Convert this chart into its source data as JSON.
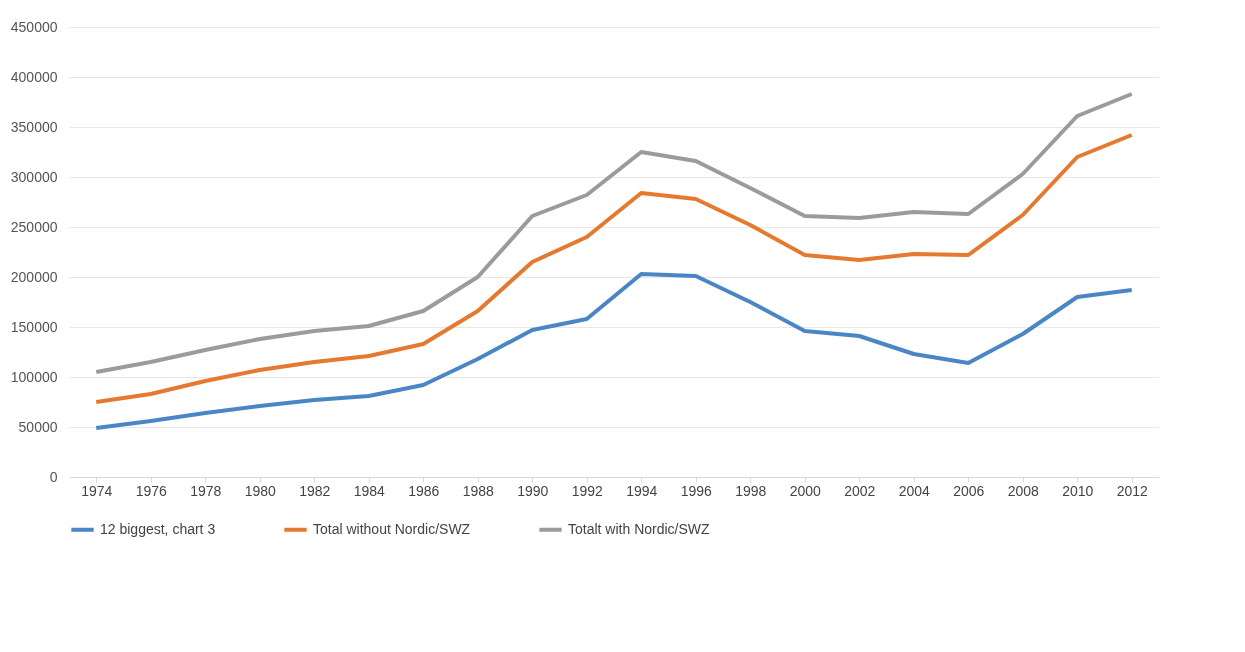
{
  "chart_data": {
    "type": "line",
    "categories": [
      "1974",
      "1976",
      "1978",
      "1980",
      "1982",
      "1984",
      "1986",
      "1988",
      "1990",
      "1992",
      "1994",
      "1996",
      "1998",
      "2000",
      "2002",
      "2004",
      "2006",
      "2008",
      "2010",
      "2012"
    ],
    "series": [
      {
        "name": "12 biggest, chart 3",
        "color": "#4a86c6",
        "values": [
          49000,
          56000,
          64000,
          71000,
          77000,
          81000,
          92000,
          118000,
          147000,
          158000,
          203000,
          201000,
          175000,
          146000,
          141000,
          123000,
          114000,
          143000,
          180000,
          187000
        ]
      },
      {
        "name": "Total without Nordic/SWZ",
        "color": "#e4792f",
        "values": [
          75000,
          83000,
          96000,
          107000,
          115000,
          121000,
          133000,
          166000,
          215000,
          240000,
          284000,
          278000,
          252000,
          222000,
          217000,
          223000,
          222000,
          262000,
          320000,
          342000
        ]
      },
      {
        "name": "Totalt  with  Nordic/SWZ",
        "color": "#9b9b9b",
        "values": [
          105000,
          115000,
          127000,
          138000,
          146000,
          151000,
          166000,
          200000,
          261000,
          282000,
          325000,
          316000,
          289000,
          261000,
          259000,
          265000,
          263000,
          303000,
          361000,
          383000
        ]
      }
    ],
    "ylim": [
      0,
      450000
    ],
    "yticks": [
      0,
      50000,
      100000,
      150000,
      200000,
      250000,
      300000,
      350000,
      400000,
      450000
    ],
    "grid": "y",
    "legend": "bottom"
  }
}
